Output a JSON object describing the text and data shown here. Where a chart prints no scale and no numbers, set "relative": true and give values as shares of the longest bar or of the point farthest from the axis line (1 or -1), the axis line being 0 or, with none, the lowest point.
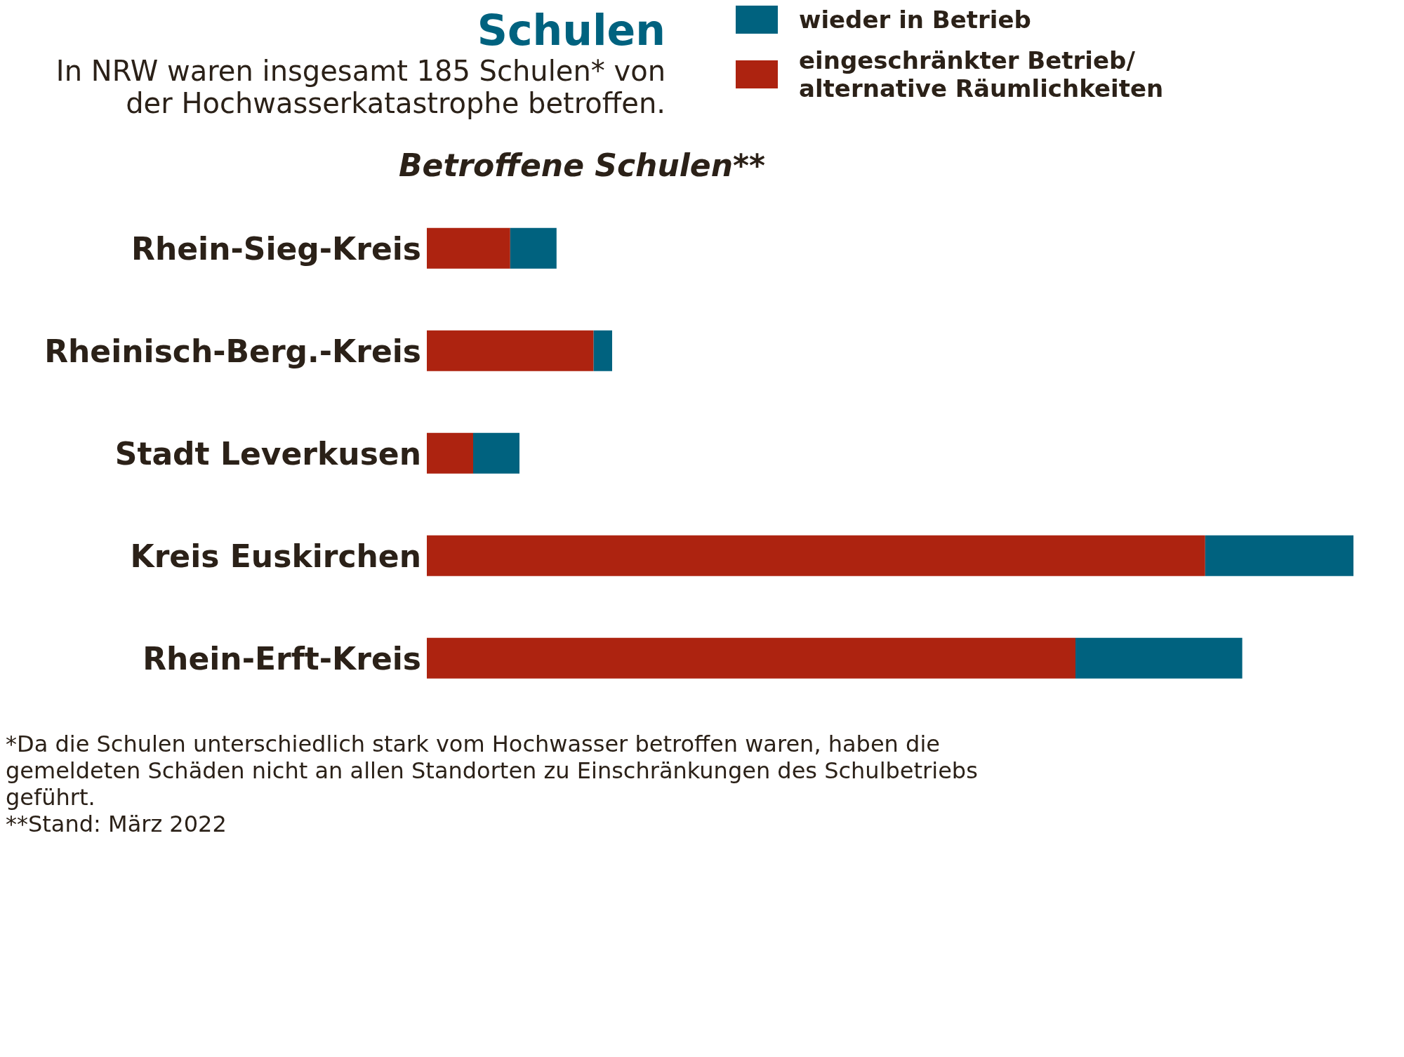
{
  "chart_data": {
    "type": "bar",
    "title": "Schulen",
    "subtitle": "In NRW waren insgesamt 185 Schulen* von der Hochwasserkatastrophe betroffen.",
    "categories": [
      "Rhein-Sieg-Kreis",
      "Rheinisch-Berg.-Kreis",
      "Stadt Leverkusen",
      "Kreis Euskirchen",
      "Rhein-Erft-Kreis"
    ],
    "orientation": "horizontal",
    "stacked": true,
    "relative": true,
    "legend": "top right",
    "series": [
      {
        "name": "eingeschränkter Betrieb/ alternative Räumlichkeiten",
        "color": "#ad2310",
        "values": [
          0.09,
          0.18,
          0.05,
          0.84,
          0.7
        ]
      },
      {
        "name": "wieder in Betrieb",
        "color": "#00627f",
        "values": [
          0.05,
          0.02,
          0.05,
          0.16,
          0.18
        ]
      }
    ],
    "annotations": [
      "Betroffene Schulen**",
      "*Da die Schulen unterschiedlich stark vom Hochwasser betroffen waren, haben die gemeldeten Schäden nicht an allen Standorten zu Einschränkungen des Schulbetriebs geführt.",
      "**Stand: März 2022"
    ]
  }
}
